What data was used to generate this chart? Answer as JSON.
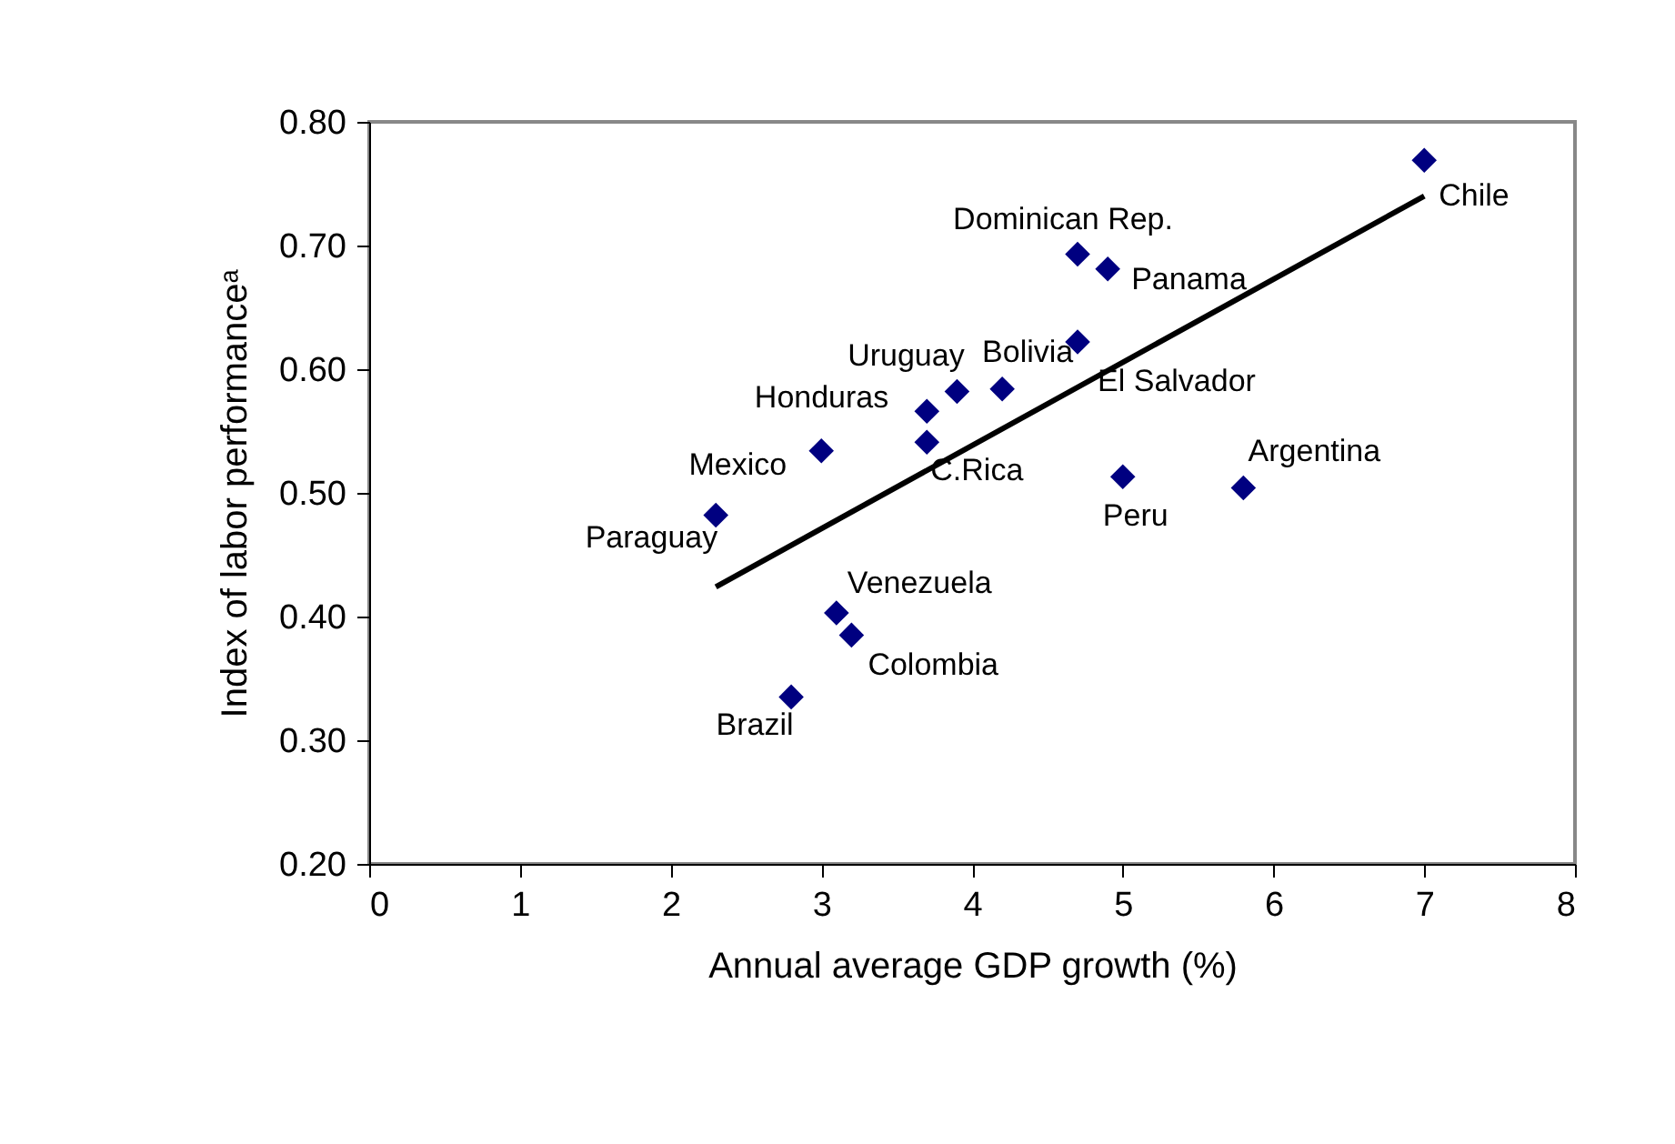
{
  "chart_data": {
    "type": "scatter",
    "xlabel": "Annual average GDP growth (%)",
    "ylabel": "Index of labor performanceᵃ",
    "xlim": [
      0,
      8
    ],
    "ylim": [
      0.2,
      0.8
    ],
    "xticks": [
      0,
      1,
      2,
      3,
      4,
      5,
      6,
      7,
      8
    ],
    "yticks": [
      {
        "value": 0.2,
        "label": "0.20"
      },
      {
        "value": 0.3,
        "label": "0.30"
      },
      {
        "value": 0.4,
        "label": "0.40"
      },
      {
        "value": 0.5,
        "label": "0.50"
      },
      {
        "value": 0.6,
        "label": "0.60"
      },
      {
        "value": 0.7,
        "label": "0.70"
      },
      {
        "value": 0.8,
        "label": "0.80"
      }
    ],
    "grid": false,
    "legend": false,
    "series": [
      {
        "type": "scatter",
        "color": "#000080",
        "marker": "diamond",
        "x": [
          7.0,
          4.7,
          4.9,
          4.7,
          3.9,
          3.7,
          4.2,
          3.0,
          3.7,
          2.3,
          5.0,
          5.8,
          3.1,
          3.2,
          2.8
        ],
        "values": [
          0.769,
          0.693,
          0.681,
          0.622,
          0.582,
          0.566,
          0.584,
          0.534,
          0.541,
          0.482,
          0.513,
          0.504,
          0.403,
          0.385,
          0.335
        ]
      },
      {
        "type": "line",
        "color": "#000000",
        "line_style": "solid",
        "x": [
          2.3,
          7.0
        ],
        "values": [
          0.424,
          0.74
        ]
      }
    ],
    "annotations": [
      {
        "text": "Chile",
        "x": 7.0,
        "y": 0.769
      },
      {
        "text": "Dominican Rep.",
        "x": 4.7,
        "y": 0.693
      },
      {
        "text": "Panama",
        "x": 4.9,
        "y": 0.681
      },
      {
        "text": "El Salvador",
        "x": 4.7,
        "y": 0.622
      },
      {
        "text": "Uruguay",
        "x": 3.9,
        "y": 0.582
      },
      {
        "text": "Honduras",
        "x": 3.7,
        "y": 0.566
      },
      {
        "text": "Bolivia",
        "x": 4.2,
        "y": 0.584
      },
      {
        "text": "Mexico",
        "x": 3.0,
        "y": 0.534
      },
      {
        "text": "C.Rica",
        "x": 3.7,
        "y": 0.541
      },
      {
        "text": "Paraguay",
        "x": 2.3,
        "y": 0.482
      },
      {
        "text": "Peru",
        "x": 5.0,
        "y": 0.513
      },
      {
        "text": "Argentina",
        "x": 5.8,
        "y": 0.504
      },
      {
        "text": "Venezuela",
        "x": 3.1,
        "y": 0.403
      },
      {
        "text": "Colombia",
        "x": 3.2,
        "y": 0.385
      },
      {
        "text": "Brazil",
        "x": 2.8,
        "y": 0.335
      }
    ]
  }
}
